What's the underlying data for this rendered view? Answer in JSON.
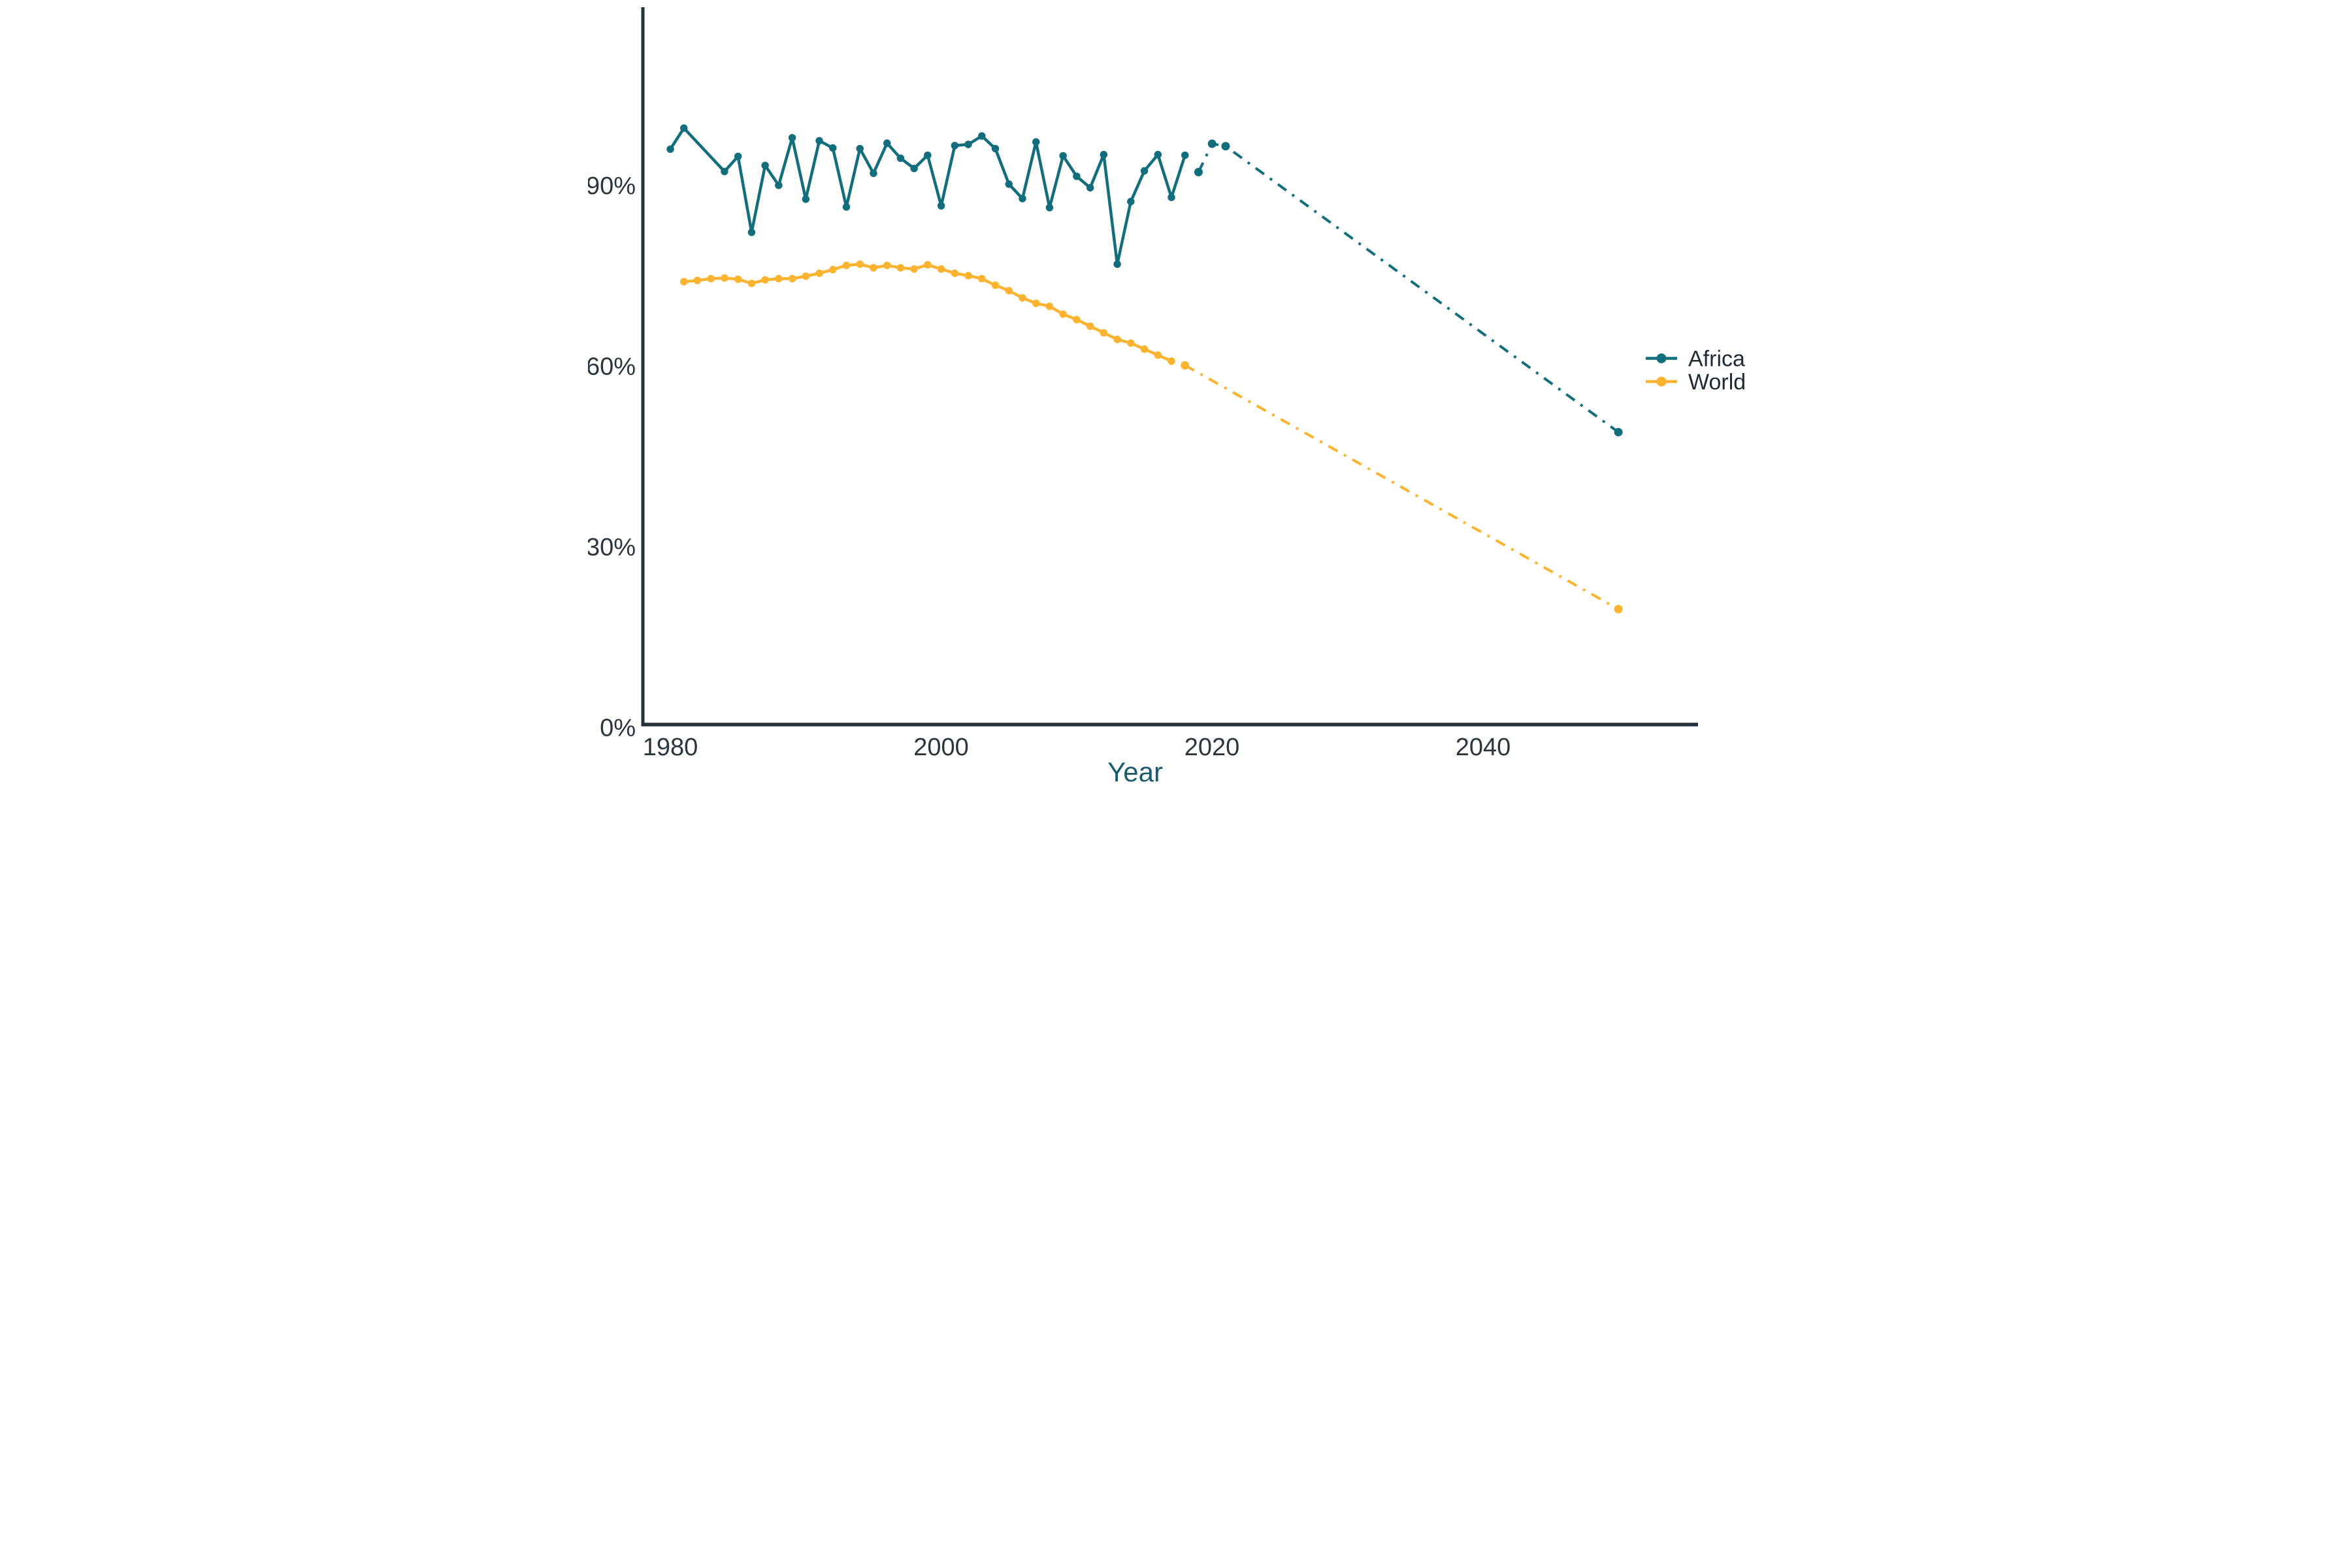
{
  "chart_data": {
    "type": "line",
    "title": "",
    "xlabel": "Year",
    "ylabel": "",
    "grid": "off",
    "legend_position": "right",
    "xlim": [
      1977.5,
      2056
    ],
    "ylim": [
      0,
      119
    ],
    "x_axis": {
      "ticks": [
        {
          "value": 1980,
          "label": "1980"
        },
        {
          "value": 2000,
          "label": "2000"
        },
        {
          "value": 2020,
          "label": "2020"
        },
        {
          "value": 2040,
          "label": "2040"
        }
      ]
    },
    "y_axis": {
      "ticks": [
        {
          "value": 0,
          "label": "0%"
        },
        {
          "value": 30,
          "label": "30%"
        },
        {
          "value": 60,
          "label": "60%"
        },
        {
          "value": 90,
          "label": "90%"
        }
      ]
    },
    "series": [
      {
        "name": "Africa",
        "color": "#126e7c",
        "observed_style": "solid",
        "projected_style": "dash-dot",
        "observed": [
          [
            1980,
            96.0
          ],
          [
            1981,
            99.5
          ],
          [
            1984,
            92.3
          ],
          [
            1985,
            94.8
          ],
          [
            1986,
            82.2
          ],
          [
            1987,
            93.3
          ],
          [
            1988,
            90.0
          ],
          [
            1989,
            97.9
          ],
          [
            1990,
            87.7
          ],
          [
            1991,
            97.4
          ],
          [
            1992,
            96.2
          ],
          [
            1993,
            86.4
          ],
          [
            1994,
            96.1
          ],
          [
            1995,
            92.0
          ],
          [
            1996,
            97.0
          ],
          [
            1997,
            94.5
          ],
          [
            1998,
            92.8
          ],
          [
            1999,
            95.0
          ],
          [
            2000,
            86.6
          ],
          [
            2001,
            96.6
          ],
          [
            2002,
            96.8
          ],
          [
            2003,
            98.2
          ],
          [
            2004,
            96.1
          ],
          [
            2005,
            90.2
          ],
          [
            2006,
            87.8
          ],
          [
            2007,
            97.2
          ],
          [
            2008,
            86.3
          ],
          [
            2009,
            94.9
          ],
          [
            2010,
            91.5
          ],
          [
            2011,
            89.6
          ],
          [
            2012,
            95.1
          ],
          [
            2013,
            76.9
          ],
          [
            2014,
            87.3
          ],
          [
            2015,
            92.4
          ],
          [
            2016,
            95.1
          ],
          [
            2017,
            88.0
          ],
          [
            2018,
            95.0
          ]
        ],
        "projected": [
          [
            2019,
            92.2
          ],
          [
            2020,
            96.9
          ],
          [
            2021,
            96.5
          ],
          [
            2050,
            49.0
          ]
        ]
      },
      {
        "name": "World",
        "color": "#fcb32f",
        "observed_style": "solid",
        "projected_style": "dash-dot",
        "observed": [
          [
            1981,
            74.0
          ],
          [
            1982,
            74.2
          ],
          [
            1983,
            74.5
          ],
          [
            1984,
            74.6
          ],
          [
            1985,
            74.4
          ],
          [
            1986,
            73.7
          ],
          [
            1987,
            74.3
          ],
          [
            1988,
            74.5
          ],
          [
            1989,
            74.5
          ],
          [
            1990,
            74.9
          ],
          [
            1991,
            75.4
          ],
          [
            1992,
            76.0
          ],
          [
            1993,
            76.7
          ],
          [
            1994,
            76.9
          ],
          [
            1995,
            76.3
          ],
          [
            1996,
            76.7
          ],
          [
            1997,
            76.3
          ],
          [
            1998,
            76.1
          ],
          [
            1999,
            76.8
          ],
          [
            2000,
            76.1
          ],
          [
            2001,
            75.4
          ],
          [
            2002,
            75.0
          ],
          [
            2003,
            74.5
          ],
          [
            2004,
            73.4
          ],
          [
            2005,
            72.5
          ],
          [
            2006,
            71.3
          ],
          [
            2007,
            70.4
          ],
          [
            2008,
            69.9
          ],
          [
            2009,
            68.6
          ],
          [
            2010,
            67.7
          ],
          [
            2011,
            66.6
          ],
          [
            2012,
            65.5
          ],
          [
            2013,
            64.4
          ],
          [
            2014,
            63.8
          ],
          [
            2015,
            62.8
          ],
          [
            2016,
            61.8
          ],
          [
            2017,
            60.8
          ]
        ],
        "projected": [
          [
            2018,
            60.1
          ],
          [
            2050,
            19.6
          ]
        ]
      }
    ]
  },
  "legend": {
    "items": [
      {
        "label": "Africa",
        "color": "#126e7c"
      },
      {
        "label": "World",
        "color": "#fcb32f"
      }
    ]
  },
  "colors": {
    "axis": "#22313a",
    "tick_text": "#2a363e",
    "xlabel_text": "#1b5c6b",
    "legend_text": "#1e2b33",
    "background": "#ffffff",
    "africa": "#126e7c",
    "world": "#fcb32f"
  }
}
